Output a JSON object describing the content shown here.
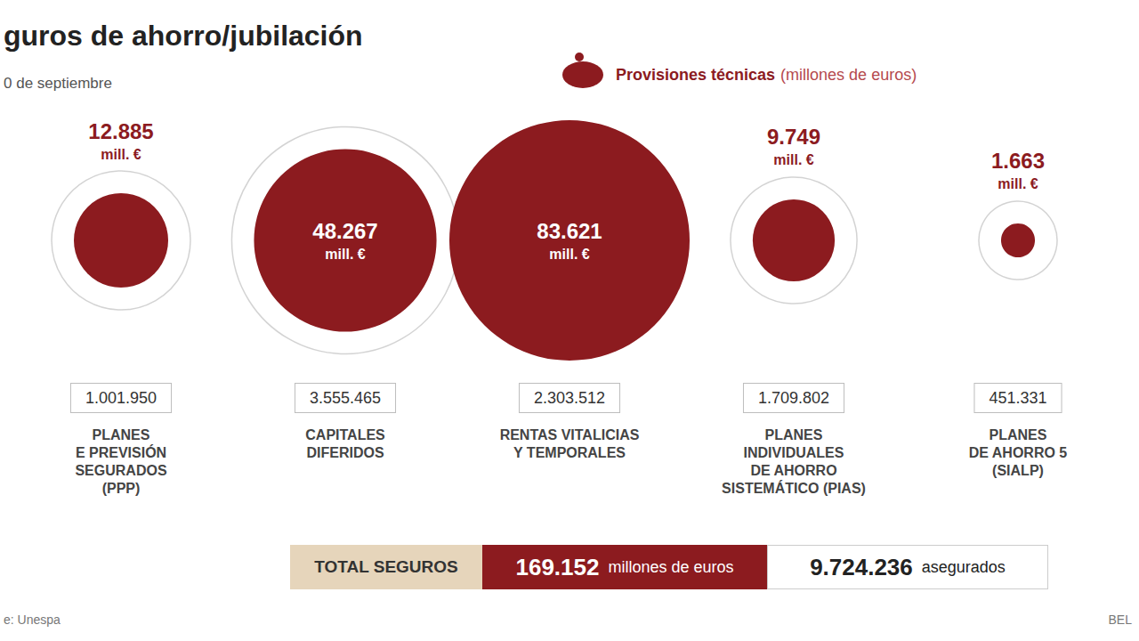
{
  "chart_data": {
    "type": "bubble",
    "title": "guros de ahorro/jubilación",
    "subtitle": "0 de septiembre",
    "annotations": [
      "Provisiones técnicas",
      "(millones de euros)"
    ],
    "categories": [
      "PLANES\nE PREVISIÓN\nSEGURADOS\n(PPP)",
      "CAPITALES\nDIFERIDOS",
      "RENTAS VITALICIAS\nY TEMPORALES",
      "PLANES\nINDIVIDUALES\nDE AHORRO\nSISTEMÁTICO (PIAS)",
      "PLANES\nDE AHORRO 5\n(SIALP)"
    ],
    "values": [
      12885,
      48267,
      83621,
      9749,
      1663
    ],
    "value_labels": [
      "12.885\nmill. €",
      "48.267\nmill. €",
      "83.621\nmill. €",
      "9.749\nmill. €",
      "1.663\nmill. €"
    ],
    "insured_labels": [
      "1.001.950",
      "3.555.465",
      "2.303.512",
      "1.709.802",
      "451.331"
    ],
    "color": "#8c1b1f",
    "data_labels": true,
    "tick_labels": false,
    "total": {
      "label": "TOTAL SEGUROS",
      "value_label": "169.152",
      "unit": "millones de euros",
      "insured_label": "9.724.236",
      "insured_unit": "asegurados"
    },
    "source": "e: Unespa",
    "credit": "BEL"
  }
}
